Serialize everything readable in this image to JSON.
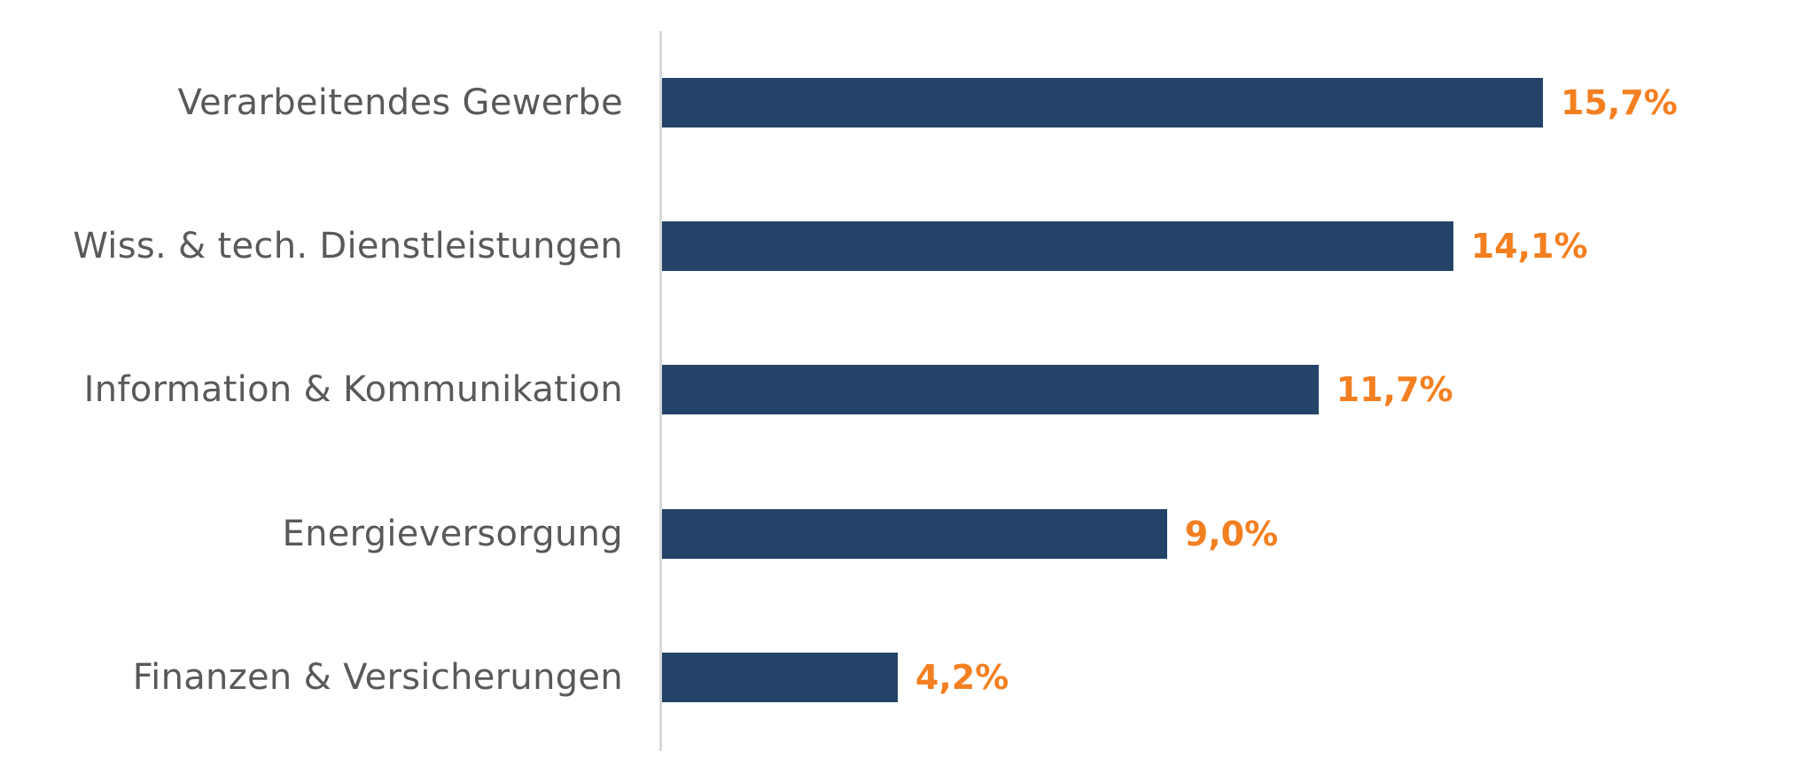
{
  "chart_data": {
    "type": "bar",
    "orientation": "horizontal",
    "title": "",
    "xlabel": "",
    "ylabel": "",
    "categories": [
      "Verarbeitendes Gewerbe",
      "Wiss. & tech. Dienstleistungen",
      "Information & Kommunikation",
      "Energieversorgung",
      "Finanzen & Versicherungen"
    ],
    "values": [
      15.7,
      14.1,
      11.7,
      9.0,
      4.2
    ],
    "value_labels": [
      "15,7%",
      "14,1%",
      "11,7%",
      "9,0%",
      "4,2%"
    ],
    "unit": "%",
    "grid": false,
    "legend": null,
    "colors": {
      "bar": "#234368",
      "value_label": "#F47F20",
      "category_label": "#595959",
      "axis": "#D9D9D9"
    }
  },
  "bars": [
    {
      "category": "Verarbeitendes Gewerbe",
      "value": 15.7,
      "label": "15,7%"
    },
    {
      "category": "Wiss. & tech. Dienstleistungen",
      "value": 14.1,
      "label": "14,1%"
    },
    {
      "category": "Information & Kommunikation",
      "value": 11.7,
      "label": "11,7%"
    },
    {
      "category": "Energieversorgung",
      "value": 9.0,
      "label": "9,0%"
    },
    {
      "category": "Finanzen & Versicherungen",
      "value": 4.2,
      "label": "4,2%"
    }
  ]
}
